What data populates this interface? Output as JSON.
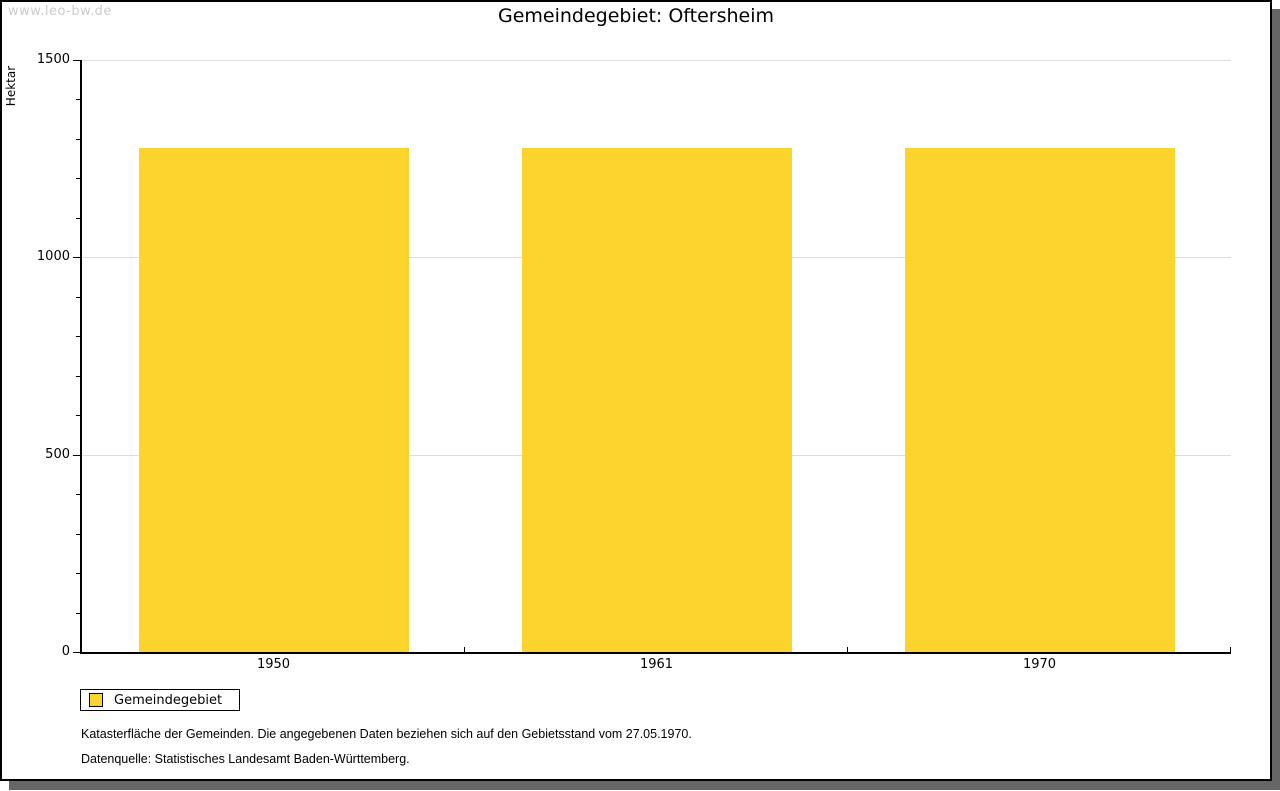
{
  "watermark": "www.leo-bw.de",
  "chart_data": {
    "type": "bar",
    "title": "Gemeindegebiet: Oftersheim",
    "ylabel": "Hektar",
    "xlabel": "",
    "categories": [
      "1950",
      "1961",
      "1970"
    ],
    "series": [
      {
        "name": "Gemeindegebiet",
        "color": "#FCD42D",
        "values": [
          1277,
          1277,
          1277
        ]
      }
    ],
    "ylim": [
      0,
      1500
    ],
    "yticks": [
      0,
      500,
      1000,
      1500
    ],
    "minor_tick_step": 100,
    "grid": true,
    "legend_position": "bottom-left"
  },
  "footer": {
    "note": "Katasterfläche der Gemeinden. Die angegebenen Daten beziehen sich auf den Gebietsstand vom 27.05.1970.",
    "source": "Datenquelle: Statistisches Landesamt Baden-Württemberg."
  },
  "colors": {
    "bar": "#FCD42D",
    "gridline": "#DCDCDC",
    "axis": "#000000",
    "watermark": "#CBCBCB",
    "shadow": "#666666"
  }
}
